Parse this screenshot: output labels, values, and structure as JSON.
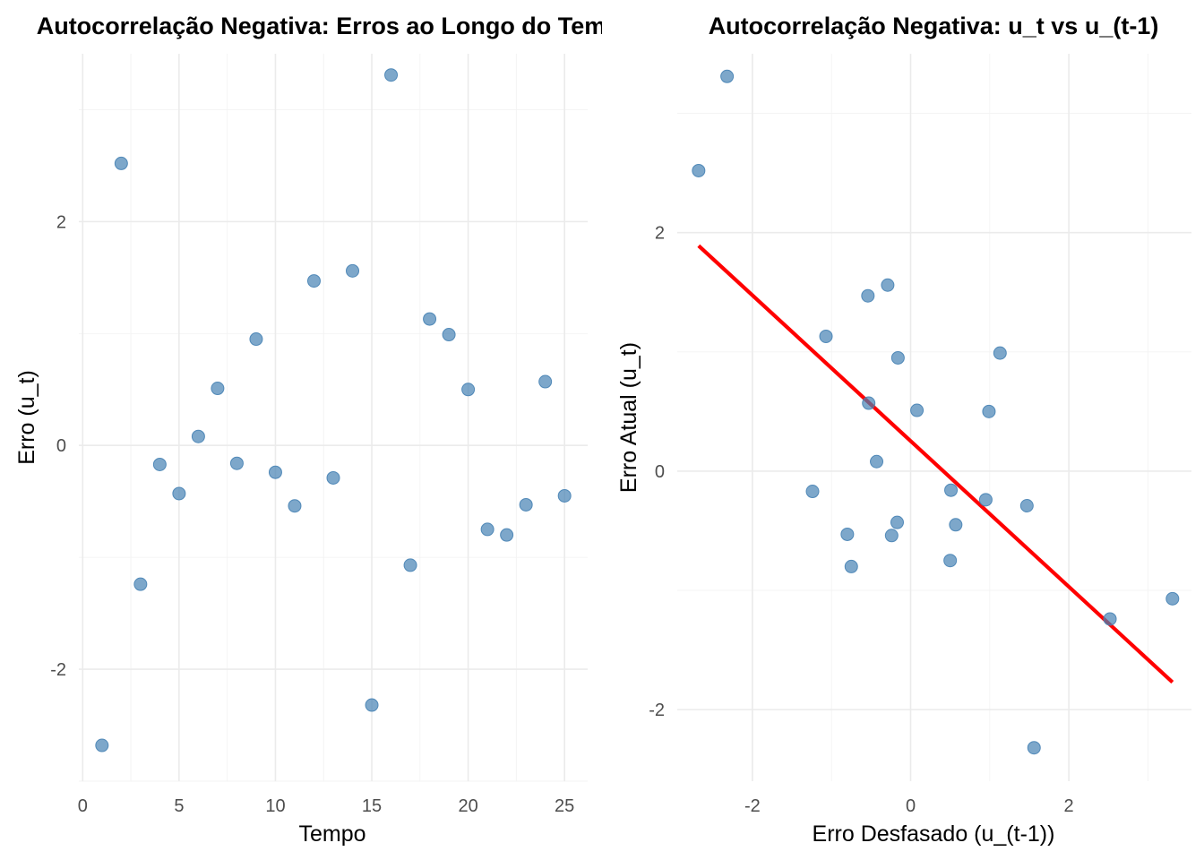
{
  "chart_data": [
    {
      "type": "scatter",
      "title": "Autocorrelação Negativa: Erros ao Longo do Tempo",
      "xlabel": "Tempo",
      "ylabel": "Erro (u_t)",
      "xlim": [
        -0.2,
        26.2
      ],
      "ylim": [
        -3.0,
        3.5
      ],
      "xticks": [
        0,
        5,
        10,
        15,
        20,
        25
      ],
      "yticks": [
        -2,
        0,
        2
      ],
      "grid": true,
      "legend": "none",
      "point_color": "#4682b4",
      "x": [
        1,
        2,
        3,
        4,
        5,
        6,
        7,
        8,
        9,
        10,
        11,
        12,
        13,
        14,
        15,
        16,
        17,
        18,
        19,
        20,
        21,
        22,
        23,
        24,
        25
      ],
      "y": [
        -2.68,
        2.52,
        -1.24,
        -0.17,
        -0.43,
        0.08,
        0.51,
        -0.16,
        0.95,
        -0.24,
        -0.54,
        1.47,
        -0.29,
        1.56,
        -2.32,
        3.31,
        -1.07,
        1.13,
        0.99,
        0.5,
        -0.75,
        -0.8,
        -0.53,
        0.57,
        -0.45
      ]
    },
    {
      "type": "scatter",
      "title": "Autocorrelação Negativa: u_t vs u_(t-1)",
      "xlabel": "Erro Desfasado (u_(t-1))",
      "ylabel": "Erro Atual (u_t)",
      "xlim": [
        -2.95,
        3.55
      ],
      "ylim": [
        -2.6,
        3.5
      ],
      "xticks": [
        -2,
        0,
        2
      ],
      "yticks": [
        -2,
        0,
        2
      ],
      "grid": true,
      "legend": "none",
      "point_color": "#4682b4",
      "line_color": "#ff0000",
      "x": [
        -2.68,
        2.52,
        -1.24,
        -0.17,
        -0.43,
        0.08,
        0.51,
        -0.16,
        0.95,
        -0.24,
        -0.54,
        1.47,
        -0.29,
        1.56,
        -2.32,
        3.31,
        -1.07,
        1.13,
        0.99,
        0.5,
        -0.75,
        -0.8,
        -0.53,
        0.57
      ],
      "y": [
        2.52,
        -1.24,
        -0.17,
        -0.43,
        0.08,
        0.51,
        -0.16,
        0.95,
        -0.24,
        -0.54,
        1.47,
        -0.29,
        1.56,
        -2.32,
        3.31,
        -1.07,
        1.13,
        0.99,
        0.5,
        -0.75,
        -0.8,
        -0.53,
        0.57,
        -0.45
      ],
      "fit_line": {
        "x": [
          -2.68,
          3.31
        ],
        "y": [
          1.89,
          -1.77
        ]
      }
    }
  ]
}
